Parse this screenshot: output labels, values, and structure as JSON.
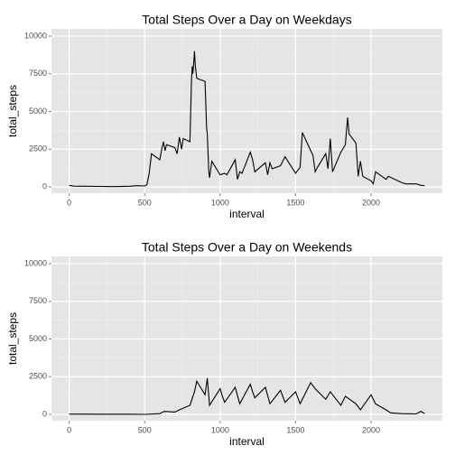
{
  "chart_data": [
    {
      "type": "line",
      "title": "Total Steps Over a Day on Weekdays",
      "x_label": "interval",
      "y_label": "total_steps",
      "color": "#000000",
      "grid": true,
      "xlim": [
        -117.75,
        2472.75
      ],
      "xticks": [
        0,
        500,
        1000,
        1500,
        2000
      ],
      "ylim": [
        -420,
        10480
      ],
      "yticks": [
        0,
        2500,
        5000,
        7500,
        10000
      ],
      "x": [
        0,
        30,
        100,
        200,
        300,
        400,
        450,
        500,
        515,
        530,
        545,
        600,
        615,
        625,
        635,
        645,
        700,
        715,
        730,
        745,
        755,
        800,
        810,
        815,
        820,
        830,
        835,
        845,
        900,
        910,
        915,
        925,
        930,
        945,
        1000,
        1030,
        1045,
        1100,
        1115,
        1130,
        1145,
        1200,
        1215,
        1230,
        1300,
        1315,
        1330,
        1345,
        1400,
        1430,
        1500,
        1530,
        1545,
        1600,
        1615,
        1630,
        1645,
        1700,
        1715,
        1730,
        1745,
        1800,
        1830,
        1845,
        1855,
        1900,
        1915,
        1930,
        1945,
        2000,
        2015,
        2030,
        2100,
        2115,
        2200,
        2230,
        2300,
        2330,
        2355
      ],
      "values": [
        100,
        50,
        40,
        30,
        20,
        40,
        80,
        60,
        150,
        900,
        2200,
        1800,
        2600,
        3000,
        2400,
        2800,
        2600,
        2200,
        3300,
        2500,
        3200,
        3000,
        7000,
        8000,
        7500,
        9000,
        8100,
        7200,
        7000,
        4000,
        3500,
        1000,
        600,
        1700,
        800,
        900,
        800,
        1800,
        500,
        1000,
        900,
        2300,
        1800,
        1000,
        1600,
        800,
        1600,
        1200,
        1400,
        2000,
        900,
        1300,
        3600,
        2400,
        2100,
        1000,
        1300,
        2200,
        1200,
        3200,
        1000,
        2300,
        2800,
        4600,
        3500,
        2900,
        700,
        1700,
        700,
        400,
        200,
        1000,
        500,
        700,
        300,
        200,
        200,
        100,
        80
      ]
    },
    {
      "type": "line",
      "title": "Total Steps Over a Day on Weekends",
      "x_label": "interval",
      "y_label": "total_steps",
      "color": "#000000",
      "grid": true,
      "xlim": [
        -117.75,
        2472.75
      ],
      "xticks": [
        0,
        500,
        1000,
        1500,
        2000
      ],
      "ylim": [
        -420,
        10480
      ],
      "yticks": [
        0,
        2500,
        5000,
        7500,
        10000
      ],
      "x": [
        0,
        200,
        400,
        500,
        600,
        630,
        700,
        730,
        800,
        830,
        845,
        900,
        915,
        930,
        1000,
        1015,
        1030,
        1100,
        1130,
        1200,
        1215,
        1230,
        1300,
        1330,
        1400,
        1430,
        1500,
        1530,
        1600,
        1630,
        1700,
        1730,
        1800,
        1830,
        1900,
        1930,
        2000,
        2030,
        2100,
        2130,
        2200,
        2300,
        2330,
        2355
      ],
      "values": [
        20,
        10,
        10,
        0,
        50,
        200,
        150,
        300,
        600,
        1500,
        2200,
        1300,
        2400,
        600,
        1700,
        1200,
        800,
        1800,
        700,
        2000,
        1500,
        1100,
        1800,
        700,
        1600,
        800,
        1500,
        700,
        2100,
        1700,
        1000,
        1500,
        600,
        1200,
        700,
        300,
        1300,
        700,
        300,
        100,
        50,
        30,
        200,
        50
      ]
    }
  ]
}
